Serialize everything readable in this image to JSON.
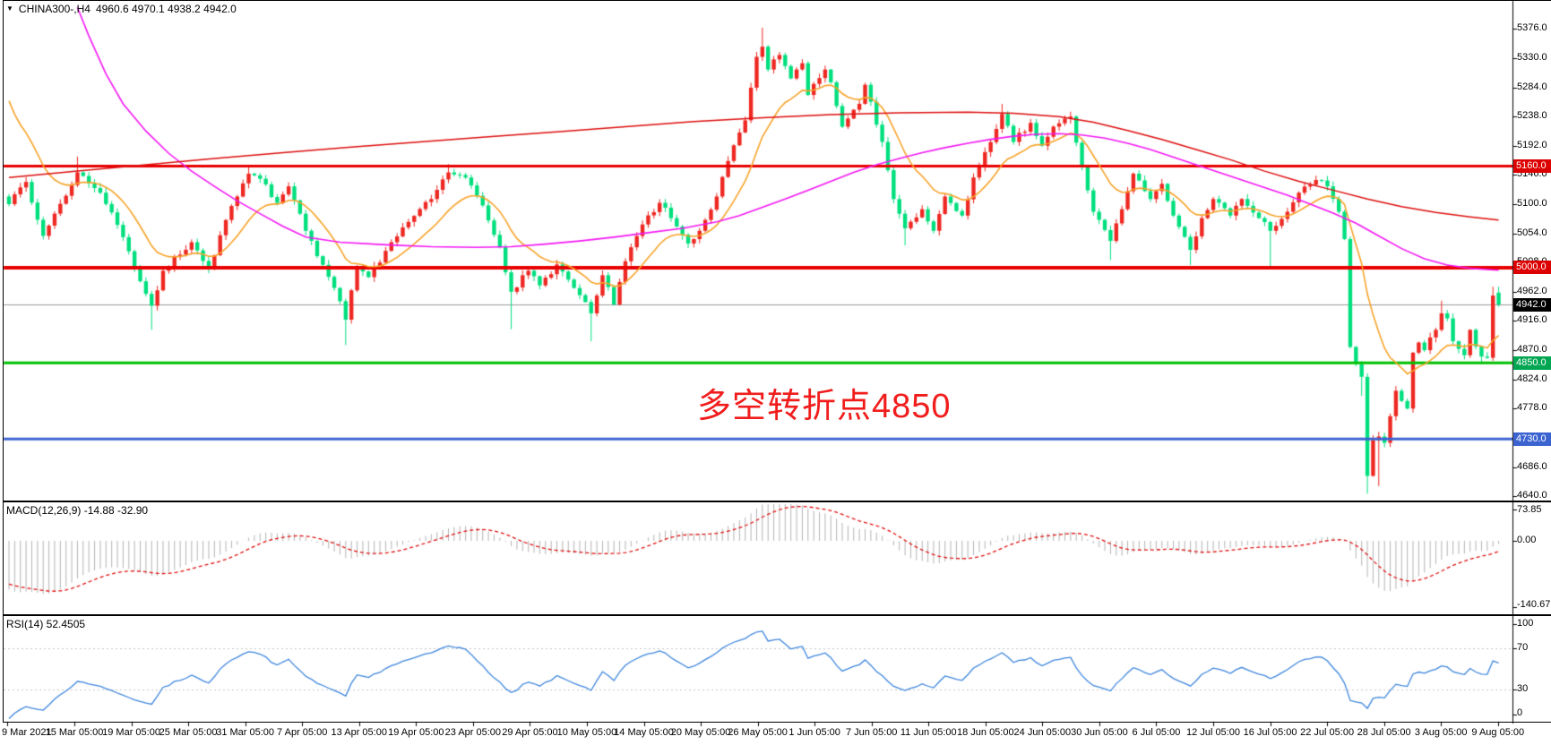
{
  "header": {
    "symbol": "CHINA300-,H4",
    "ohlc": "4960.6 4970.1 4938.2 4942.0"
  },
  "annotation": {
    "text": "多空转折点4850"
  },
  "panels": {
    "macd": {
      "label": "MACD(12,26,9) -14.88 -32.90",
      "scale": [
        "73.85",
        "0.00",
        "-140.67"
      ]
    },
    "rsi": {
      "label": "RSI(14) 52.4505",
      "scale": [
        "100",
        "70",
        "30",
        "0"
      ]
    }
  },
  "price_axis": {
    "ticks": [
      "5376.0",
      "5330.0",
      "5284.0",
      "5238.0",
      "5192.0",
      "5146.0",
      "5100.0",
      "5054.0",
      "5008.0",
      "4962.0",
      "4916.0",
      "4870.0",
      "4824.0",
      "4778.0",
      "4732.0",
      "4686.0",
      "4640.0"
    ],
    "badges": [
      {
        "text": "5160.0",
        "color": "#dd0000"
      },
      {
        "text": "5000.0",
        "color": "#dd0000"
      },
      {
        "text": "4942.0",
        "color": "#000000"
      },
      {
        "text": "4850.0",
        "color": "#00a651"
      },
      {
        "text": "4730.0",
        "color": "#3c64d0"
      }
    ]
  },
  "time_axis": {
    "labels": [
      "9 Mar 2021",
      "15 Mar 05:00",
      "19 Mar 05:00",
      "25 Mar 05:00",
      "31 Mar 05:00",
      "7 Apr 05:00",
      "13 Apr 05:00",
      "19 Apr 05:00",
      "23 Apr 05:00",
      "29 Apr 05:00",
      "10 May 05:00",
      "14 May 05:00",
      "20 May 05:00",
      "26 May 05:00",
      "1 Jun 05:00",
      "7 Jun 05:00",
      "11 Jun 05:00",
      "18 Jun 05:00",
      "24 Jun 05:00",
      "30 Jun 05:00",
      "6 Jul 05:00",
      "12 Jul 05:00",
      "16 Jul 05:00",
      "22 Jul 05:00",
      "28 Jul 05:00",
      "3 Aug 05:00",
      "9 Aug 05:00"
    ]
  },
  "colors": {
    "up": "#ee2822",
    "down": "#00df7e",
    "current_line": "#9a9a9a",
    "ma_orange": "#f7a329",
    "ma_magenta": "#f318f3",
    "ma_red": "#dd0f0f",
    "macd_bar": "#b4b4b4",
    "macd_signal": "#e01010",
    "rsi_line": "#3e86dd",
    "rsi_level": "#c4c4c4",
    "annotation": "#f01d1c"
  },
  "chart_data": [
    {
      "type": "candlestick",
      "symbol": "CHINA300-",
      "timeframe": "H4",
      "last_ohlc": {
        "open": 4960.6,
        "high": 4970.1,
        "low": 4938.2,
        "close": 4942.0
      },
      "y_axis_ticks": [
        5376,
        5330,
        5284,
        5238,
        5192,
        5146,
        5100,
        5054,
        5008,
        4962,
        4916,
        4870,
        4824,
        4778,
        4732,
        4686,
        4640
      ],
      "levels": [
        {
          "price": 4942,
          "color": "#9a9a9a",
          "width": 1,
          "note": "current price line"
        },
        {
          "price": 5160,
          "color": "#e80000",
          "width": 3
        },
        {
          "price": 5000,
          "color": "#e80000",
          "width": 4
        },
        {
          "price": 4850,
          "color": "#00c000",
          "width": 3
        },
        {
          "price": 4730,
          "color": "#3c64d0",
          "width": 3
        }
      ],
      "visible_bars": 262,
      "pre_trend": {
        "bars": 35,
        "from": 5700,
        "to": 5200
      },
      "price_anchors": [
        [
          0,
          5100
        ],
        [
          3,
          5135
        ],
        [
          6,
          5050
        ],
        [
          8,
          5085
        ],
        [
          12,
          5150,
          5175
        ],
        [
          16,
          5118
        ],
        [
          20,
          5048
        ],
        [
          22,
          5000
        ],
        [
          25,
          4940,
          null,
          4902
        ],
        [
          27,
          4995
        ],
        [
          32,
          5040
        ],
        [
          35,
          4998
        ],
        [
          38,
          5075
        ],
        [
          42,
          5148,
          5160
        ],
        [
          44,
          5140
        ],
        [
          47,
          5102
        ],
        [
          49,
          5128
        ],
        [
          52,
          5058
        ],
        [
          54,
          5018
        ],
        [
          57,
          4968
        ],
        [
          59,
          4918,
          null,
          4878
        ],
        [
          61,
          5002
        ],
        [
          63,
          4985
        ],
        [
          67,
          5040
        ],
        [
          70,
          5072
        ],
        [
          74,
          5108
        ],
        [
          77,
          5150,
          5163
        ],
        [
          80,
          5142
        ],
        [
          83,
          5098
        ],
        [
          86,
          5032
        ],
        [
          88,
          4962,
          null,
          4903
        ],
        [
          91,
          4995
        ],
        [
          93,
          4972
        ],
        [
          96,
          5005
        ],
        [
          99,
          4968
        ],
        [
          102,
          4928,
          null,
          4884
        ],
        [
          104,
          4988
        ],
        [
          106,
          4942
        ],
        [
          108,
          5010
        ],
        [
          111,
          5068
        ],
        [
          114,
          5102
        ],
        [
          116,
          5078
        ],
        [
          119,
          5038
        ],
        [
          121,
          5058
        ],
        [
          124,
          5112
        ],
        [
          126,
          5168
        ],
        [
          129,
          5232
        ],
        [
          131,
          5332
        ],
        [
          132,
          5348,
          5378
        ],
        [
          133,
          5312
        ],
        [
          135,
          5335
        ],
        [
          137,
          5298
        ],
        [
          139,
          5322
        ],
        [
          140,
          5272
        ],
        [
          143,
          5312
        ],
        [
          144,
          5292
        ],
        [
          146,
          5222
        ],
        [
          149,
          5258
        ],
        [
          150,
          5288
        ],
        [
          153,
          5198
        ],
        [
          155,
          5108
        ],
        [
          157,
          5062,
          null,
          5035
        ],
        [
          160,
          5092
        ],
        [
          162,
          5058
        ],
        [
          164,
          5112
        ],
        [
          167,
          5082
        ],
        [
          169,
          5142
        ],
        [
          171,
          5182
        ],
        [
          174,
          5242,
          5258
        ],
        [
          176,
          5198
        ],
        [
          179,
          5228
        ],
        [
          181,
          5192
        ],
        [
          183,
          5222
        ],
        [
          186,
          5238
        ],
        [
          188,
          5158
        ],
        [
          190,
          5088
        ],
        [
          193,
          5042,
          null,
          5012
        ],
        [
          195,
          5092
        ],
        [
          197,
          5148
        ],
        [
          200,
          5108
        ],
        [
          202,
          5132
        ],
        [
          204,
          5082
        ],
        [
          207,
          5028,
          null,
          5004
        ],
        [
          209,
          5078
        ],
        [
          211,
          5108
        ],
        [
          214,
          5082
        ],
        [
          216,
          5108
        ],
        [
          219,
          5078
        ],
        [
          221,
          5058,
          null,
          5000
        ],
        [
          224,
          5088
        ],
        [
          226,
          5118
        ],
        [
          229,
          5138
        ],
        [
          231,
          5128
        ],
        [
          233,
          5088
        ],
        [
          234,
          5045
        ],
        [
          235,
          4875
        ],
        [
          236,
          4848
        ],
        [
          237,
          4828,
          null,
          4798
        ],
        [
          238,
          4672,
          null,
          4644
        ],
        [
          239,
          4728
        ],
        [
          240,
          4734,
          null,
          4656
        ],
        [
          241,
          4724
        ],
        [
          242,
          4766
        ],
        [
          243,
          4806
        ],
        [
          244,
          4790
        ],
        [
          245,
          4778
        ],
        [
          246,
          4866
        ],
        [
          247,
          4882
        ],
        [
          248,
          4870
        ],
        [
          249,
          4890
        ],
        [
          250,
          4902
        ],
        [
          251,
          4928,
          4948
        ],
        [
          252,
          4920
        ],
        [
          253,
          4884
        ],
        [
          254,
          4872
        ],
        [
          255,
          4862
        ],
        [
          256,
          4902
        ],
        [
          257,
          4876
        ],
        [
          258,
          4860,
          null,
          4848
        ],
        [
          259,
          4858
        ],
        [
          260,
          4956,
          4970
        ],
        [
          261,
          4942,
          4970.1,
          4938.2
        ]
      ],
      "ma_orange_period": 13,
      "ma_magenta_anchors": [
        [
          12,
          5410
        ],
        [
          14,
          5365
        ],
        [
          17,
          5305
        ],
        [
          20,
          5258
        ],
        [
          24,
          5215
        ],
        [
          28,
          5180
        ],
        [
          32,
          5152
        ],
        [
          36,
          5128
        ],
        [
          40,
          5105
        ],
        [
          44,
          5085
        ],
        [
          48,
          5065
        ],
        [
          52,
          5048
        ],
        [
          58,
          5040
        ],
        [
          66,
          5036
        ],
        [
          74,
          5033
        ],
        [
          82,
          5032
        ],
        [
          88,
          5033
        ],
        [
          94,
          5037
        ],
        [
          100,
          5042
        ],
        [
          106,
          5048
        ],
        [
          112,
          5055
        ],
        [
          118,
          5062
        ],
        [
          124,
          5072
        ],
        [
          128,
          5082
        ],
        [
          132,
          5095
        ],
        [
          136,
          5108
        ],
        [
          140,
          5122
        ],
        [
          144,
          5136
        ],
        [
          148,
          5150
        ],
        [
          152,
          5162
        ],
        [
          156,
          5172
        ],
        [
          160,
          5181
        ],
        [
          164,
          5189
        ],
        [
          168,
          5196
        ],
        [
          172,
          5202
        ],
        [
          176,
          5207
        ],
        [
          180,
          5210
        ],
        [
          184,
          5211
        ],
        [
          188,
          5209
        ],
        [
          192,
          5204
        ],
        [
          196,
          5196
        ],
        [
          200,
          5186
        ],
        [
          204,
          5174
        ],
        [
          208,
          5162
        ],
        [
          212,
          5150
        ],
        [
          216,
          5138
        ],
        [
          220,
          5126
        ],
        [
          224,
          5114
        ],
        [
          228,
          5100
        ],
        [
          232,
          5086
        ],
        [
          236,
          5070
        ],
        [
          240,
          5050
        ],
        [
          244,
          5030
        ],
        [
          248,
          5014
        ],
        [
          252,
          5004
        ],
        [
          256,
          4999
        ],
        [
          259,
          4997
        ],
        [
          261,
          4996
        ]
      ],
      "ma_red_anchors": [
        [
          0,
          5142
        ],
        [
          12,
          5152
        ],
        [
          24,
          5162
        ],
        [
          36,
          5172
        ],
        [
          48,
          5181
        ],
        [
          60,
          5190
        ],
        [
          72,
          5198
        ],
        [
          84,
          5206
        ],
        [
          96,
          5214
        ],
        [
          108,
          5222
        ],
        [
          120,
          5230
        ],
        [
          132,
          5236
        ],
        [
          144,
          5241
        ],
        [
          156,
          5244
        ],
        [
          168,
          5245
        ],
        [
          176,
          5243
        ],
        [
          184,
          5238
        ],
        [
          190,
          5229
        ],
        [
          196,
          5216
        ],
        [
          202,
          5202
        ],
        [
          208,
          5186
        ],
        [
          214,
          5170
        ],
        [
          220,
          5152
        ],
        [
          226,
          5136
        ],
        [
          232,
          5122
        ],
        [
          238,
          5108
        ],
        [
          244,
          5096
        ],
        [
          250,
          5087
        ],
        [
          256,
          5080
        ],
        [
          261,
          5075
        ]
      ]
    },
    {
      "type": "macd",
      "params": [
        12,
        26,
        9
      ],
      "current_main": -14.88,
      "current_signal": -32.9,
      "y_max": 73.85,
      "y_min": -140.67
    },
    {
      "type": "rsi",
      "period": 14,
      "current": 52.4505,
      "levels": [
        30,
        70
      ],
      "range": [
        0,
        100
      ]
    }
  ]
}
